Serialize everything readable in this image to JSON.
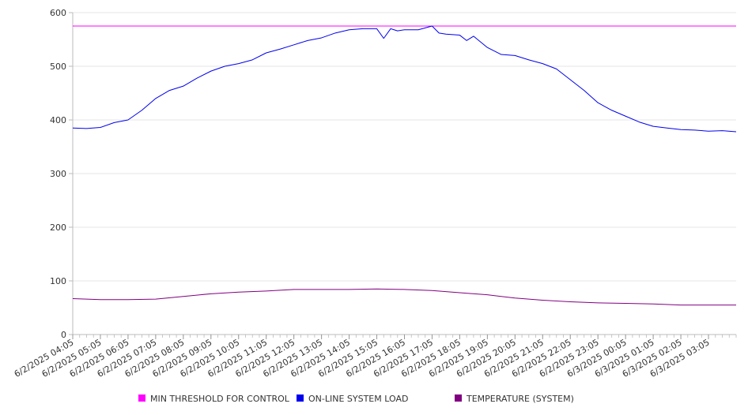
{
  "chart_data": {
    "type": "line",
    "title": "",
    "xlabel": "",
    "ylabel": "",
    "ylim": [
      0,
      600
    ],
    "yticks": [
      0,
      100,
      200,
      300,
      400,
      500,
      600
    ],
    "grid": true,
    "legend_position": "bottom",
    "x_tick_labels": [
      "6/2/2025 04:05",
      "6/2/2025 05:05",
      "6/2/2025 06:05",
      "6/2/2025 07:05",
      "6/2/2025 08:05",
      "6/2/2025 09:05",
      "6/2/2025 10:05",
      "6/2/2025 11:05",
      "6/2/2025 12:05",
      "6/2/2025 13:05",
      "6/2/2025 14:05",
      "6/2/2025 15:05",
      "6/2/2025 16:05",
      "6/2/2025 17:05",
      "6/2/2025 18:05",
      "6/2/2025 19:05",
      "6/2/2025 20:05",
      "6/2/2025 21:05",
      "6/2/2025 22:05",
      "6/2/2025 23:05",
      "6/3/2025 00:05",
      "6/3/2025 01:05",
      "6/3/2025 02:05",
      "6/3/2025 03:05"
    ],
    "x_range": [
      "6/2/2025 04:05",
      "6/3/2025 04:05"
    ],
    "series": [
      {
        "name": "MIN THRESHOLD FOR CONTROL",
        "color": "#ff00ff",
        "x": [
          "6/2/2025 04:05",
          "6/3/2025 04:05"
        ],
        "values": [
          575,
          575
        ]
      },
      {
        "name": "ON-LINE SYSTEM LOAD",
        "color": "#0000ee",
        "x": [
          "6/2/2025 04:05",
          "6/2/2025 04:35",
          "6/2/2025 05:05",
          "6/2/2025 05:35",
          "6/2/2025 06:05",
          "6/2/2025 06:35",
          "6/2/2025 07:05",
          "6/2/2025 07:35",
          "6/2/2025 08:05",
          "6/2/2025 08:35",
          "6/2/2025 09:05",
          "6/2/2025 09:35",
          "6/2/2025 10:05",
          "6/2/2025 10:35",
          "6/2/2025 11:05",
          "6/2/2025 11:35",
          "6/2/2025 12:05",
          "6/2/2025 12:35",
          "6/2/2025 13:05",
          "6/2/2025 13:35",
          "6/2/2025 14:05",
          "6/2/2025 14:35",
          "6/2/2025 15:05",
          "6/2/2025 15:20",
          "6/2/2025 15:35",
          "6/2/2025 15:50",
          "6/2/2025 16:05",
          "6/2/2025 16:35",
          "6/2/2025 17:05",
          "6/2/2025 17:20",
          "6/2/2025 17:35",
          "6/2/2025 18:05",
          "6/2/2025 18:20",
          "6/2/2025 18:35",
          "6/2/2025 19:05",
          "6/2/2025 19:35",
          "6/2/2025 20:05",
          "6/2/2025 20:35",
          "6/2/2025 21:05",
          "6/2/2025 21:35",
          "6/2/2025 22:05",
          "6/2/2025 22:35",
          "6/2/2025 23:05",
          "6/2/2025 23:35",
          "6/3/2025 00:05",
          "6/3/2025 00:35",
          "6/3/2025 01:05",
          "6/3/2025 01:35",
          "6/3/2025 02:05",
          "6/3/2025 02:35",
          "6/3/2025 03:05",
          "6/3/2025 03:35",
          "6/3/2025 04:05"
        ],
        "values": [
          385,
          384,
          386,
          395,
          400,
          418,
          440,
          455,
          463,
          478,
          491,
          500,
          505,
          512,
          525,
          532,
          540,
          548,
          553,
          562,
          568,
          570,
          570,
          552,
          570,
          566,
          568,
          568,
          575,
          562,
          560,
          558,
          548,
          556,
          535,
          522,
          520,
          512,
          505,
          495,
          475,
          455,
          432,
          418,
          407,
          396,
          388,
          385,
          382,
          381,
          379,
          380,
          378
        ]
      },
      {
        "name": "TEMPERATURE (SYSTEM)",
        "color": "#800080",
        "x": [
          "6/2/2025 04:05",
          "6/2/2025 05:05",
          "6/2/2025 06:05",
          "6/2/2025 07:05",
          "6/2/2025 08:05",
          "6/2/2025 09:05",
          "6/2/2025 10:05",
          "6/2/2025 11:05",
          "6/2/2025 12:05",
          "6/2/2025 13:05",
          "6/2/2025 14:05",
          "6/2/2025 15:05",
          "6/2/2025 16:05",
          "6/2/2025 17:05",
          "6/2/2025 18:05",
          "6/2/2025 19:05",
          "6/2/2025 20:05",
          "6/2/2025 21:05",
          "6/2/2025 22:05",
          "6/2/2025 23:05",
          "6/3/2025 00:05",
          "6/3/2025 01:05",
          "6/3/2025 02:05",
          "6/3/2025 03:05",
          "6/3/2025 04:05"
        ],
        "values": [
          67,
          65,
          65,
          66,
          71,
          76,
          79,
          81,
          84,
          84,
          84,
          85,
          84,
          82,
          78,
          74,
          68,
          64,
          61,
          59,
          58,
          57,
          55,
          55,
          55
        ]
      }
    ]
  }
}
